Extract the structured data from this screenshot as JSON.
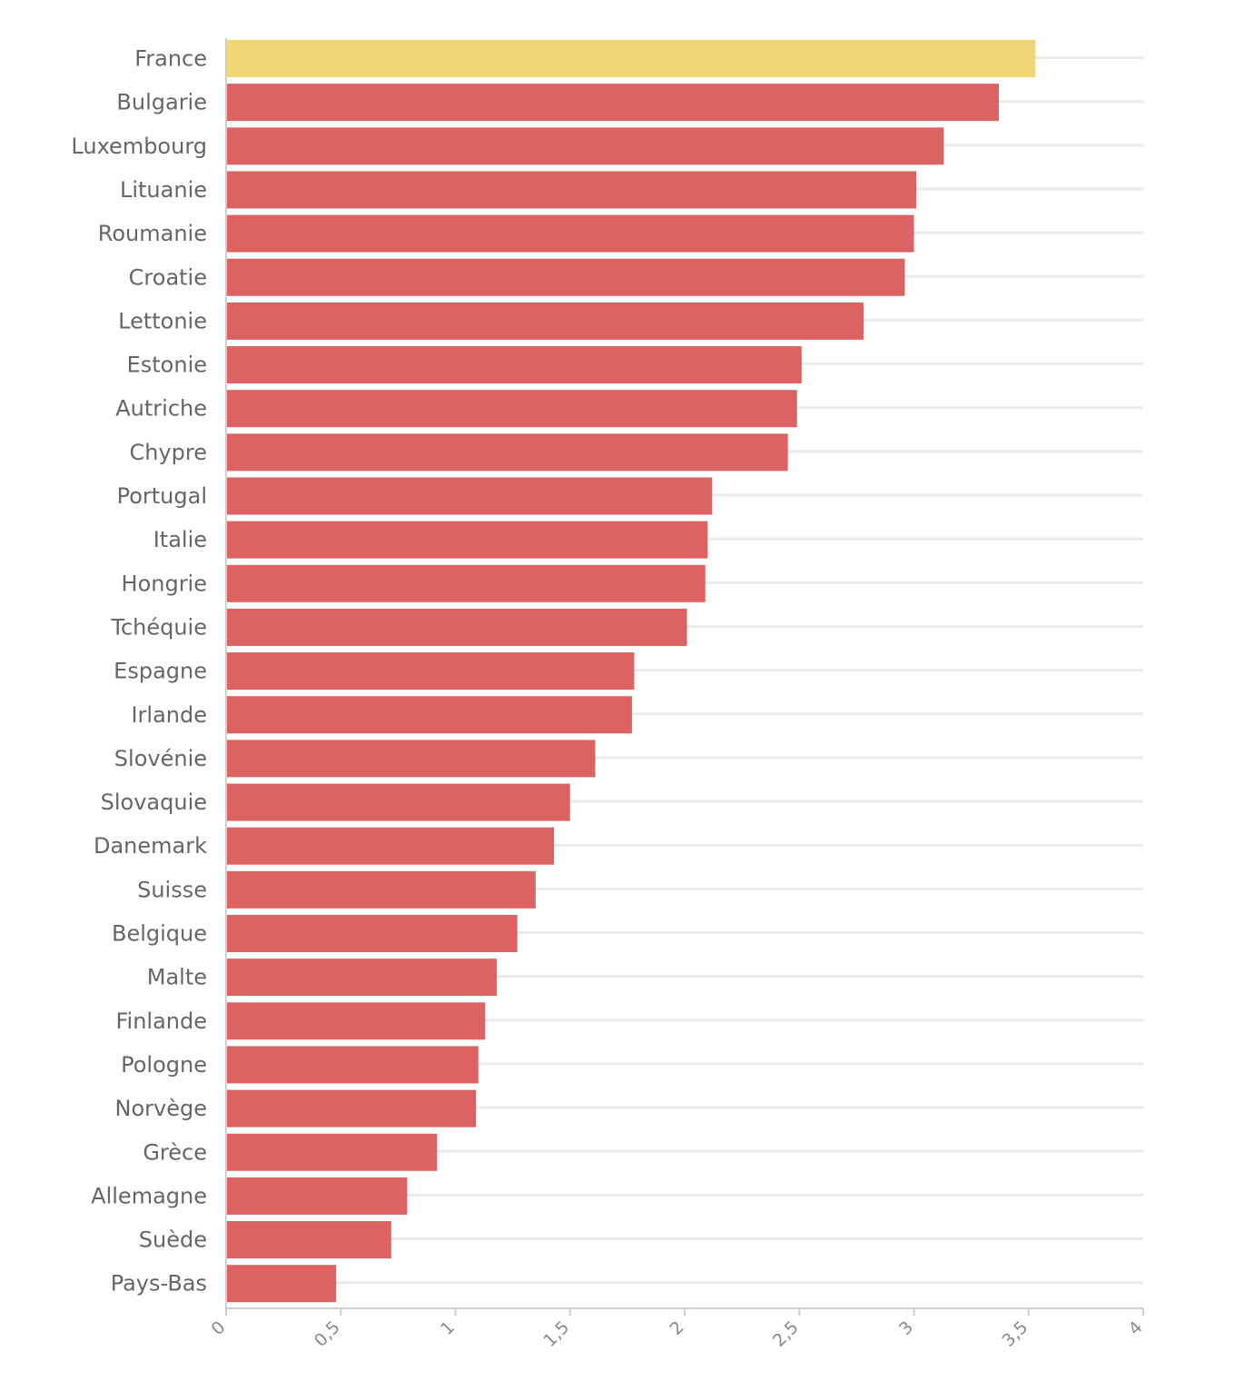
{
  "chart_data": {
    "type": "bar",
    "orientation": "horizontal",
    "title": "",
    "xlabel": "",
    "ylabel": "",
    "xlim": [
      0,
      4
    ],
    "ticks": [
      0,
      0.5,
      1,
      1.5,
      2,
      2.5,
      3,
      3.5,
      4
    ],
    "tick_labels": [
      "0",
      "0,5",
      "1",
      "1,5",
      "2",
      "2,5",
      "3",
      "3,5",
      "4"
    ],
    "grid": true,
    "highlight_category": "France",
    "colors": {
      "default": "#dd6262",
      "highlight": "#f0d776"
    },
    "categories": [
      "France",
      "Bulgarie",
      "Luxembourg",
      "Lituanie",
      "Roumanie",
      "Croatie",
      "Lettonie",
      "Estonie",
      "Autriche",
      "Chypre",
      "Portugal",
      "Italie",
      "Hongrie",
      "Tchéquie",
      "Espagne",
      "Irlande",
      "Slovénie",
      "Slovaquie",
      "Danemark",
      "Suisse",
      "Belgique",
      "Malte",
      "Finlande",
      "Pologne",
      "Norvège",
      "Grèce",
      "Allemagne",
      "Suède",
      "Pays-Bas"
    ],
    "values": [
      3.53,
      3.37,
      3.13,
      3.01,
      3.0,
      2.96,
      2.78,
      2.51,
      2.49,
      2.45,
      2.12,
      2.1,
      2.09,
      2.01,
      1.78,
      1.77,
      1.61,
      1.5,
      1.43,
      1.35,
      1.27,
      1.18,
      1.13,
      1.1,
      1.09,
      0.92,
      0.79,
      0.72,
      0.48
    ]
  }
}
